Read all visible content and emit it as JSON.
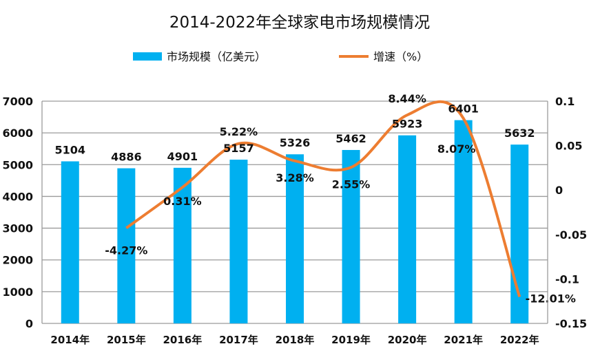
{
  "chart_data": {
    "type": "bar+line",
    "title": "2014-2022年全球家电市场规模情况",
    "categories": [
      "2014年",
      "2015年",
      "2016年",
      "2017年",
      "2018年",
      "2019年",
      "2020年",
      "2021年",
      "2022年"
    ],
    "series": [
      {
        "name": "市场规模（亿美元）",
        "type": "bar",
        "axis": "left",
        "color": "#00B0F0",
        "values": [
          5104,
          4886,
          4901,
          5157,
          5326,
          5462,
          5923,
          6401,
          5632
        ],
        "labels": [
          "5104",
          "4886",
          "4901",
          "5157",
          "5326",
          "5462",
          "5923",
          "6401",
          "5632"
        ]
      },
      {
        "name": "增速（%）",
        "type": "line",
        "axis": "right",
        "color": "#ED7D31",
        "smooth": true,
        "values": [
          null,
          -0.0427,
          0.0031,
          0.0522,
          0.0328,
          0.0255,
          0.0844,
          0.0807,
          -0.1201
        ],
        "labels": [
          "",
          "-4.27%",
          "0.31%",
          "5.22%",
          "3.28%",
          "2.55%",
          "8.44%",
          "8.07%",
          "-12.01%"
        ]
      }
    ],
    "y_left": {
      "range": [
        0,
        7000
      ],
      "ticks": [
        "0",
        "1000",
        "2000",
        "3000",
        "4000",
        "5000",
        "6000",
        "7000"
      ]
    },
    "y_right": {
      "range": [
        -0.15,
        0.1
      ],
      "ticks": [
        "-0.15",
        "-0.1",
        "-0.05",
        "0",
        "0.05",
        "0.1"
      ]
    },
    "grid": true,
    "legend": "top"
  }
}
